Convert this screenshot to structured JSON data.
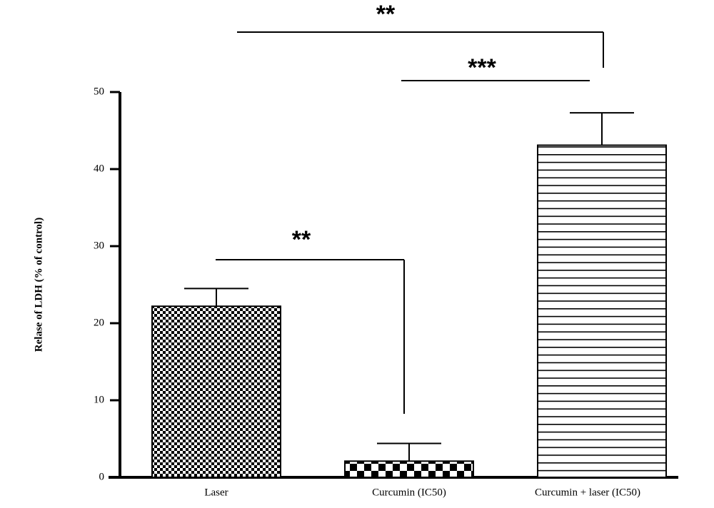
{
  "chart_data": {
    "type": "bar",
    "y_label": "Relase of LDH (% of control)",
    "categories": [
      "Laser",
      "Curcumin (IC50)",
      "Curcumin + laser (IC50)"
    ],
    "values": [
      22.2,
      2.1,
      43.1
    ],
    "errors": [
      2.3,
      2.3,
      4.2
    ],
    "color": "#000000",
    "ylim": [
      0,
      50
    ],
    "yticks": [
      0,
      10,
      20,
      30,
      40,
      50
    ],
    "grid": false,
    "annotations": [
      {
        "text": "**"
      },
      {
        "text": "***"
      },
      {
        "text": "**"
      }
    ]
  }
}
